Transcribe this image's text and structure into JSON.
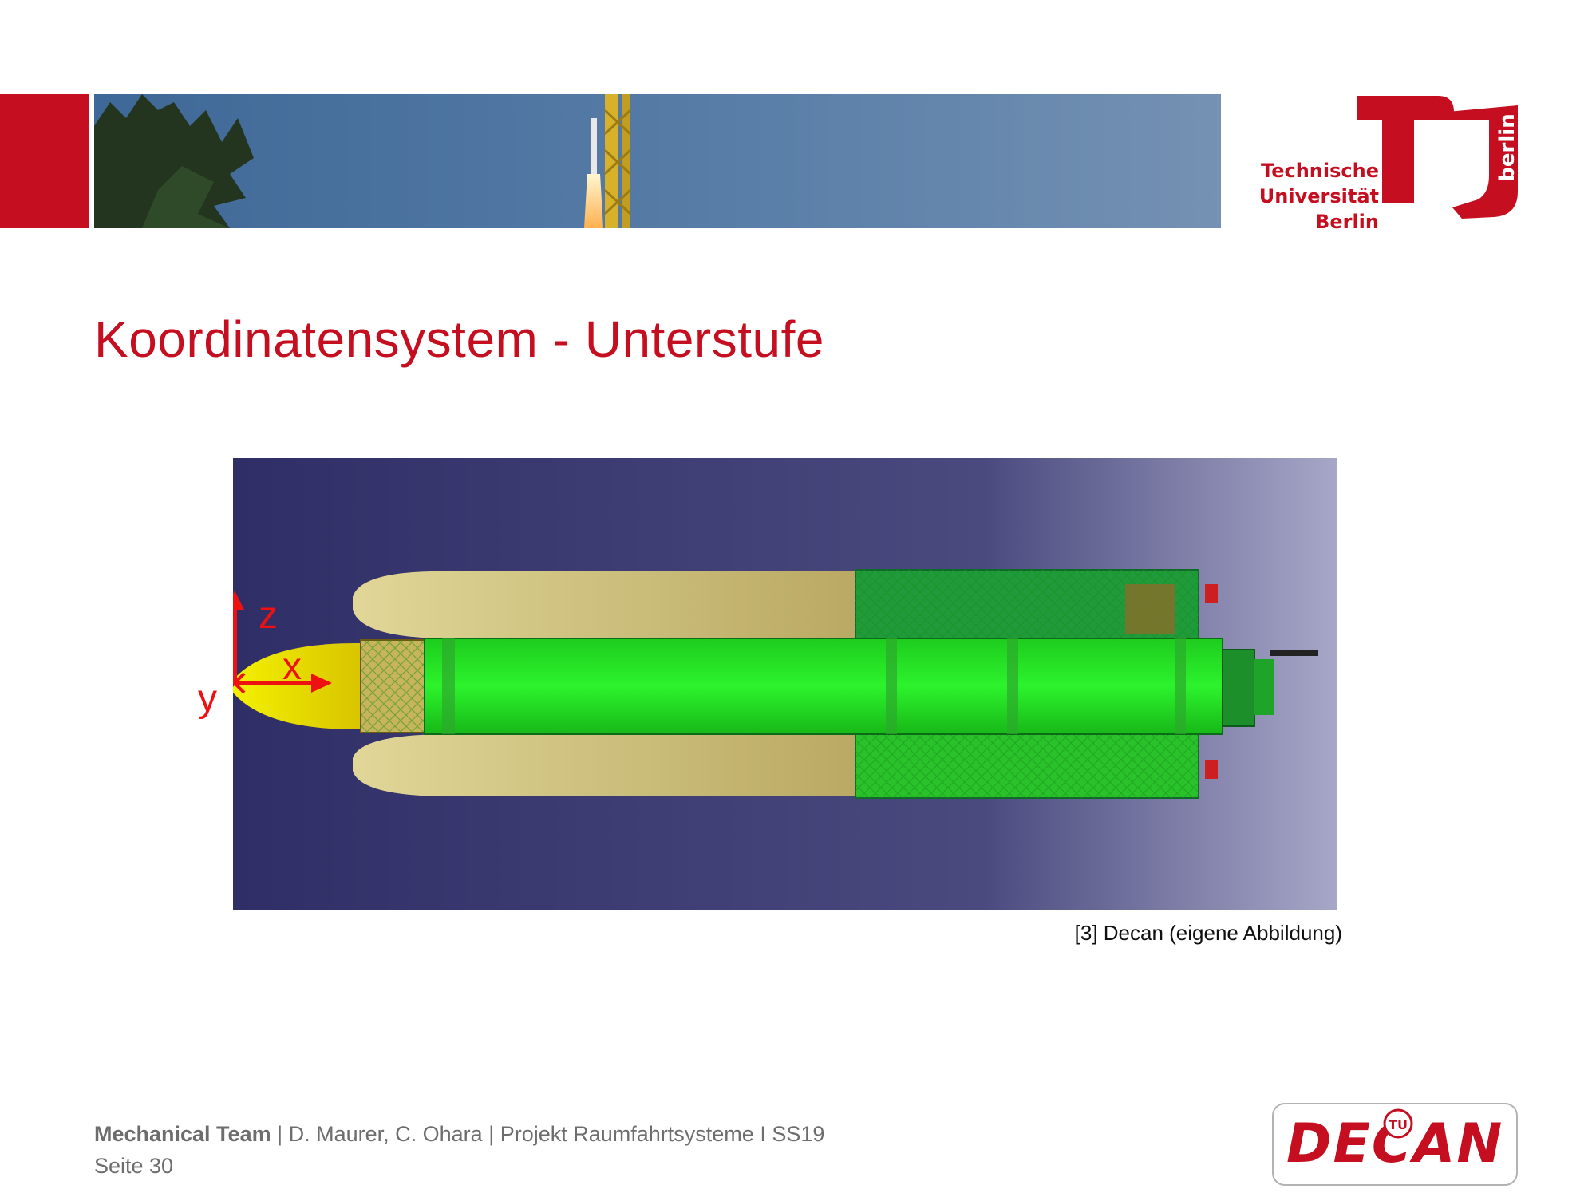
{
  "header": {
    "university": [
      "Technische",
      "Universität",
      "Berlin"
    ],
    "logo_badge": "berlin",
    "accent_color": "#c50e1f"
  },
  "slide": {
    "title": "Koordinatensystem - Unterstufe"
  },
  "figure": {
    "axes": {
      "z": "z",
      "x": "x",
      "y": "y"
    },
    "caption": "[3] Decan (eigene Abbildung)"
  },
  "footer": {
    "team": "Mechanical Team",
    "credits": " |  D. Maurer, C. Ohara | Projekt Raumfahrtsysteme I SS19",
    "page": "Seite 30",
    "logo_text": "DECAN",
    "logo_mark": "TU"
  }
}
